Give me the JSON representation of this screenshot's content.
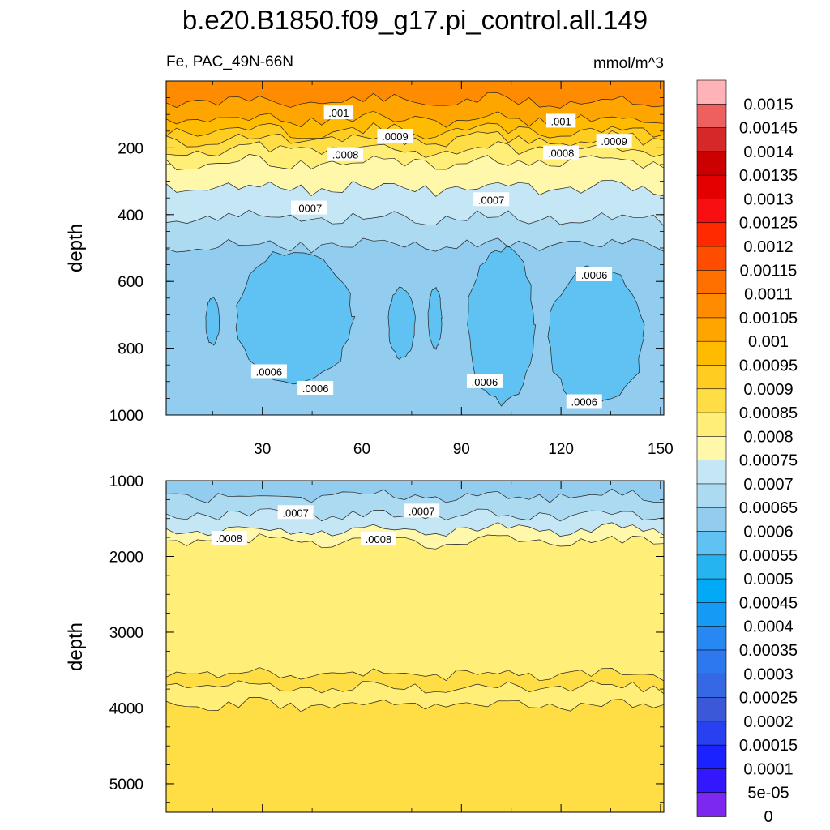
{
  "title": "b.e20.B1850.f09_g17.pi_control.all.149",
  "variable_label": "Fe, PAC_49N-66N",
  "units": "mmol/m^3",
  "chart_data": [
    {
      "type": "heatmap",
      "panel": "upper",
      "ylabel": "depth",
      "y_reversed": true,
      "xlim": [
        1,
        151
      ],
      "ylim": [
        0,
        1000
      ],
      "x_ticks": [
        "30",
        "60",
        "90",
        "120",
        "150"
      ],
      "y_ticks": [
        "200",
        "400",
        "600",
        "800",
        "1000"
      ],
      "x_tick_values": [
        30,
        60,
        90,
        120,
        150
      ],
      "y_tick_values": [
        200,
        400,
        600,
        800,
        1000
      ],
      "contour_bands": [
        {
          "level": 0.00105,
          "top": 0,
          "bottom": 60
        },
        {
          "level": 0.001,
          "top": 60,
          "bottom": 115
        },
        {
          "level": 0.00095,
          "top": 115,
          "bottom": 150
        },
        {
          "level": 0.0009,
          "top": 150,
          "bottom": 175
        },
        {
          "level": 0.00085,
          "top": 175,
          "bottom": 205
        },
        {
          "level": 0.0008,
          "top": 205,
          "bottom": 245
        },
        {
          "level": 0.00075,
          "top": 245,
          "bottom": 320
        },
        {
          "level": 0.0007,
          "top": 320,
          "bottom": 410
        },
        {
          "level": 0.00065,
          "top": 410,
          "bottom": 490
        },
        {
          "level": 0.0006,
          "top": 490,
          "bottom": 1000
        }
      ],
      "regions_0_00055": [
        {
          "x0": 22,
          "x1": 57,
          "y0": 510,
          "y1": 900
        },
        {
          "x0": 13,
          "x1": 17,
          "y0": 650,
          "y1": 790
        },
        {
          "x0": 68,
          "x1": 76,
          "y0": 620,
          "y1": 830
        },
        {
          "x0": 80,
          "x1": 84,
          "y0": 620,
          "y1": 800
        },
        {
          "x0": 92,
          "x1": 112,
          "y0": 500,
          "y1": 960
        },
        {
          "x0": 116,
          "x1": 145,
          "y0": 560,
          "y1": 970
        }
      ],
      "contour_labels": [
        {
          "text": ".001",
          "x": 53,
          "y": 95
        },
        {
          "text": ".001",
          "x": 120,
          "y": 120
        },
        {
          "text": ".0009",
          "x": 70,
          "y": 165
        },
        {
          "text": ".0009",
          "x": 136,
          "y": 180
        },
        {
          "text": ".0008",
          "x": 55,
          "y": 220
        },
        {
          "text": ".0008",
          "x": 120,
          "y": 215
        },
        {
          "text": ".0007",
          "x": 44,
          "y": 380
        },
        {
          "text": ".0007",
          "x": 99,
          "y": 355
        },
        {
          "text": ".0006",
          "x": 130,
          "y": 580
        },
        {
          "text": ".0006",
          "x": 32,
          "y": 870
        },
        {
          "text": ".0006",
          "x": 46,
          "y": 920
        },
        {
          "text": ".0006",
          "x": 97,
          "y": 900
        },
        {
          "text": ".0006",
          "x": 127,
          "y": 960
        }
      ]
    },
    {
      "type": "heatmap",
      "panel": "lower",
      "ylabel": "depth",
      "y_reversed": true,
      "xlim": [
        1,
        151
      ],
      "ylim": [
        1000,
        5375
      ],
      "y_ticks": [
        "1000",
        "2000",
        "3000",
        "4000",
        "5000"
      ],
      "y_tick_values": [
        1000,
        2000,
        3000,
        4000,
        5000
      ],
      "contour_bands": [
        {
          "level": 0.0006,
          "top": 1000,
          "bottom": 1200
        },
        {
          "level": 0.00065,
          "top": 1200,
          "bottom": 1450
        },
        {
          "level": 0.0007,
          "top": 1450,
          "bottom": 1650
        },
        {
          "level": 0.00075,
          "top": 1650,
          "bottom": 1800
        },
        {
          "level": 0.0008,
          "top": 1800,
          "bottom": 3550
        },
        {
          "level": 0.00085,
          "top": 3550,
          "bottom": 3720
        },
        {
          "level": 0.0008,
          "top": 3720,
          "bottom": 3960
        },
        {
          "level": 0.00085,
          "top": 3960,
          "bottom": 5375
        }
      ],
      "contour_labels": [
        {
          "text": ".0007",
          "x": 40,
          "y": 1420
        },
        {
          "text": ".0007",
          "x": 78,
          "y": 1400
        },
        {
          "text": ".0008",
          "x": 20,
          "y": 1760
        },
        {
          "text": ".0008",
          "x": 65,
          "y": 1770
        }
      ]
    }
  ],
  "colorbar": {
    "labels": [
      "0.0015",
      "0.00145",
      "0.0014",
      "0.00135",
      "0.0013",
      "0.00125",
      "0.0012",
      "0.00115",
      "0.0011",
      "0.00105",
      "0.001",
      "0.00095",
      "0.0009",
      "0.00085",
      "0.0008",
      "0.00075",
      "0.0007",
      "0.00065",
      "0.0006",
      "0.00055",
      "0.0005",
      "0.00045",
      "0.0004",
      "0.00035",
      "0.0003",
      "0.00025",
      "0.0002",
      "0.00015",
      "0.0001",
      "5e-05",
      "0"
    ],
    "colors": [
      "#ffb3b8",
      "#ee6060",
      "#d62828",
      "#cc0000",
      "#e40000",
      "#f81010",
      "#ff2a00",
      "#ff4d00",
      "#ff7000",
      "#ff8c00",
      "#ffa500",
      "#ffbb00",
      "#ffcc22",
      "#ffdd44",
      "#ffee77",
      "#fff8aa",
      "#c5e6f5",
      "#acdaf1",
      "#92cdef",
      "#5fc2f3",
      "#26b4f1",
      "#00aaf7",
      "#159af5",
      "#2888f2",
      "#2d78ef",
      "#3468e4",
      "#3a58d8",
      "#2840ef",
      "#1a22ff",
      "#3318ff",
      "#7d28ee"
    ]
  }
}
